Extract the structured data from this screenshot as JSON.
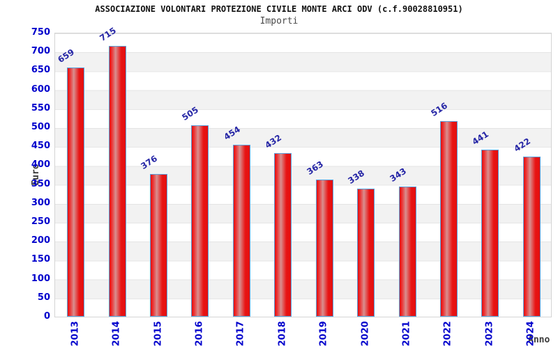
{
  "header": {
    "title": "ASSOCIAZIONE VOLONTARI PROTEZIONE CIVILE MONTE ARCI ODV (c.f.90028810951)",
    "subtitle": "Importi"
  },
  "chart_data": {
    "type": "bar",
    "title": "ASSOCIAZIONE VOLONTARI PROTEZIONE CIVILE MONTE ARCI ODV (c.f.90028810951)",
    "subtitle": "Importi",
    "categories": [
      "2013",
      "2014",
      "2015",
      "2016",
      "2017",
      "2018",
      "2019",
      "2020",
      "2021",
      "2022",
      "2023",
      "2024"
    ],
    "values": [
      659,
      715,
      376,
      505,
      454,
      432,
      363,
      338,
      343,
      516,
      441,
      422
    ],
    "xlabel": "Anno",
    "ylabel": "Euro",
    "ylim": [
      0,
      750
    ],
    "ytick_step": 50,
    "grid": "horizontal-bands",
    "legend": "none",
    "colors": {
      "bar_fill": "#e81414",
      "bar_highlight": "#d98f8f",
      "bar_border": "#58a0dc",
      "axis_tick_label": "#0000cc",
      "value_label": "#2626a6",
      "band_alt": "#f2f2f2",
      "plot_border": "#d4d4d4",
      "title_color": "#111111",
      "subtitle_color": "#4a4a4a",
      "axis_name_color": "#3a3a3a"
    }
  }
}
